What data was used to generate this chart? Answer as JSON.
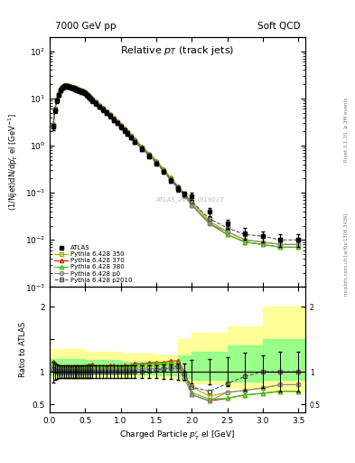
{
  "title_left": "7000 GeV pp",
  "title_right": "Soft QCD",
  "plot_title": "Relative $p_T$ (track jets)",
  "ylabel_main": "(1/Njet)dN/dp$^{r}_{T}$ el [GeV$^{-1}$]",
  "ylabel_ratio": "Ratio to ATLAS",
  "xlabel": "Charged Particle $p^{r}_{T}$ el [GeV]",
  "right_label1": "Rivet 3.1.10, ≥ 3M events",
  "right_label2": "mcplots.cern.ch [arXiv:1306.3436]",
  "watermark": "ATLAS_2011_I919017",
  "xlim": [
    0,
    3.6
  ],
  "ylim_main": [
    0.001,
    200
  ],
  "ylim_ratio": [
    0.38,
    2.3
  ],
  "color_atlas": "#000000",
  "color_350": "#aaaa00",
  "color_370": "#cc2200",
  "color_380": "#33cc00",
  "color_p0": "#888888",
  "color_p2010": "#555555",
  "atlas_x": [
    0.05,
    0.075,
    0.1,
    0.125,
    0.15,
    0.175,
    0.2,
    0.225,
    0.25,
    0.275,
    0.3,
    0.325,
    0.35,
    0.375,
    0.4,
    0.425,
    0.45,
    0.475,
    0.5,
    0.525,
    0.55,
    0.575,
    0.6,
    0.65,
    0.7,
    0.75,
    0.8,
    0.85,
    0.9,
    0.95,
    1.0,
    1.05,
    1.1,
    1.15,
    1.2,
    1.3,
    1.4,
    1.5,
    1.6,
    1.7,
    1.8,
    1.9,
    2.0,
    2.25,
    2.5,
    2.75,
    3.0,
    3.25,
    3.5
  ],
  "atlas_y": [
    2.5,
    5.5,
    9.0,
    12,
    15,
    17,
    18,
    18.5,
    18,
    17.5,
    17,
    16.5,
    16,
    15.5,
    15,
    14.5,
    14,
    13.5,
    13,
    12,
    11,
    10,
    9,
    7.8,
    6.7,
    5.8,
    5.0,
    4.2,
    3.5,
    3.0,
    2.5,
    2.1,
    1.8,
    1.5,
    1.2,
    0.85,
    0.6,
    0.42,
    0.28,
    0.18,
    0.12,
    0.095,
    0.085,
    0.04,
    0.022,
    0.014,
    0.012,
    0.01,
    0.01
  ],
  "atlas_yerr": [
    0.4,
    0.7,
    1.0,
    1.2,
    1.5,
    1.7,
    1.8,
    1.8,
    1.8,
    1.7,
    1.7,
    1.6,
    1.6,
    1.5,
    1.5,
    1.4,
    1.4,
    1.3,
    1.3,
    1.2,
    1.1,
    1.0,
    0.9,
    0.78,
    0.67,
    0.58,
    0.5,
    0.42,
    0.35,
    0.3,
    0.25,
    0.21,
    0.18,
    0.15,
    0.12,
    0.085,
    0.06,
    0.04,
    0.03,
    0.02,
    0.015,
    0.012,
    0.015,
    0.008,
    0.005,
    0.004,
    0.003,
    0.003,
    0.003
  ],
  "py350_y": [
    2.8,
    6.0,
    9.5,
    12.5,
    15.5,
    17.5,
    18.5,
    19,
    18.5,
    18,
    17.5,
    17,
    16.5,
    16,
    15.5,
    15,
    14.5,
    14,
    13.5,
    12.5,
    11.5,
    10.5,
    9.5,
    8.2,
    7.0,
    6.1,
    5.2,
    4.4,
    3.7,
    3.1,
    2.6,
    2.2,
    1.9,
    1.6,
    1.3,
    0.9,
    0.65,
    0.46,
    0.31,
    0.2,
    0.13,
    0.09,
    0.065,
    0.025,
    0.015,
    0.01,
    0.009,
    0.008,
    0.008
  ],
  "py370_y": [
    2.9,
    6.2,
    9.8,
    12.8,
    16,
    18,
    19,
    19.5,
    19,
    18.5,
    18,
    17.5,
    17,
    16.5,
    16,
    15.5,
    15,
    14.5,
    14,
    13,
    12,
    11,
    10,
    8.5,
    7.3,
    6.3,
    5.4,
    4.6,
    3.85,
    3.25,
    2.7,
    2.3,
    1.95,
    1.65,
    1.35,
    0.95,
    0.68,
    0.48,
    0.32,
    0.21,
    0.14,
    0.095,
    0.055,
    0.022,
    0.013,
    0.009,
    0.008,
    0.007,
    0.007
  ],
  "py380_y": [
    2.85,
    6.1,
    9.6,
    12.6,
    15.8,
    17.8,
    18.8,
    19.2,
    18.8,
    18.3,
    17.8,
    17.3,
    16.8,
    16.3,
    15.8,
    15.3,
    14.8,
    14.3,
    13.8,
    12.8,
    11.8,
    10.8,
    9.8,
    8.4,
    7.15,
    6.2,
    5.3,
    4.5,
    3.8,
    3.2,
    2.65,
    2.25,
    1.92,
    1.62,
    1.32,
    0.93,
    0.67,
    0.47,
    0.315,
    0.205,
    0.135,
    0.092,
    0.058,
    0.023,
    0.013,
    0.009,
    0.008,
    0.007,
    0.007
  ],
  "pyp0_y": [
    2.7,
    5.8,
    9.2,
    12.2,
    15.2,
    17.2,
    18.2,
    18.7,
    18.2,
    17.7,
    17.2,
    16.7,
    16.2,
    15.7,
    15.2,
    14.7,
    14.2,
    13.7,
    13.2,
    12.2,
    11.2,
    10.2,
    9.2,
    8.0,
    6.8,
    5.9,
    5.1,
    4.3,
    3.6,
    3.05,
    2.55,
    2.15,
    1.82,
    1.54,
    1.25,
    0.88,
    0.63,
    0.44,
    0.295,
    0.19,
    0.125,
    0.085,
    0.055,
    0.022,
    0.015,
    0.01,
    0.009,
    0.008,
    0.008
  ],
  "pyp2010_y": [
    2.6,
    5.6,
    9.0,
    12.0,
    15.0,
    17.0,
    18.0,
    18.5,
    18.0,
    17.5,
    17.0,
    16.5,
    16.0,
    15.5,
    15.0,
    14.5,
    14.0,
    13.5,
    13.0,
    12.0,
    11.0,
    10.0,
    9.0,
    7.8,
    6.7,
    5.8,
    5.0,
    4.2,
    3.5,
    3.0,
    2.5,
    2.1,
    1.8,
    1.5,
    1.2,
    0.85,
    0.61,
    0.43,
    0.29,
    0.19,
    0.13,
    0.092,
    0.065,
    0.028,
    0.018,
    0.013,
    0.012,
    0.01,
    0.01
  ],
  "band_x_edges": [
    0,
    0.5,
    1.0,
    1.5,
    1.8,
    2.0,
    2.5,
    3.0,
    3.6
  ],
  "band_yellow_lo": [
    0.9,
    0.92,
    0.92,
    0.9,
    0.85,
    0.82,
    0.75,
    0.7,
    0.7
  ],
  "band_yellow_hi": [
    1.35,
    1.3,
    1.28,
    1.25,
    1.5,
    1.6,
    1.7,
    2.0,
    2.0
  ],
  "band_green_lo": [
    0.95,
    0.96,
    0.96,
    0.94,
    0.9,
    0.88,
    0.85,
    0.88,
    0.88
  ],
  "band_green_hi": [
    1.2,
    1.18,
    1.16,
    1.14,
    1.25,
    1.3,
    1.4,
    1.5,
    1.5
  ]
}
